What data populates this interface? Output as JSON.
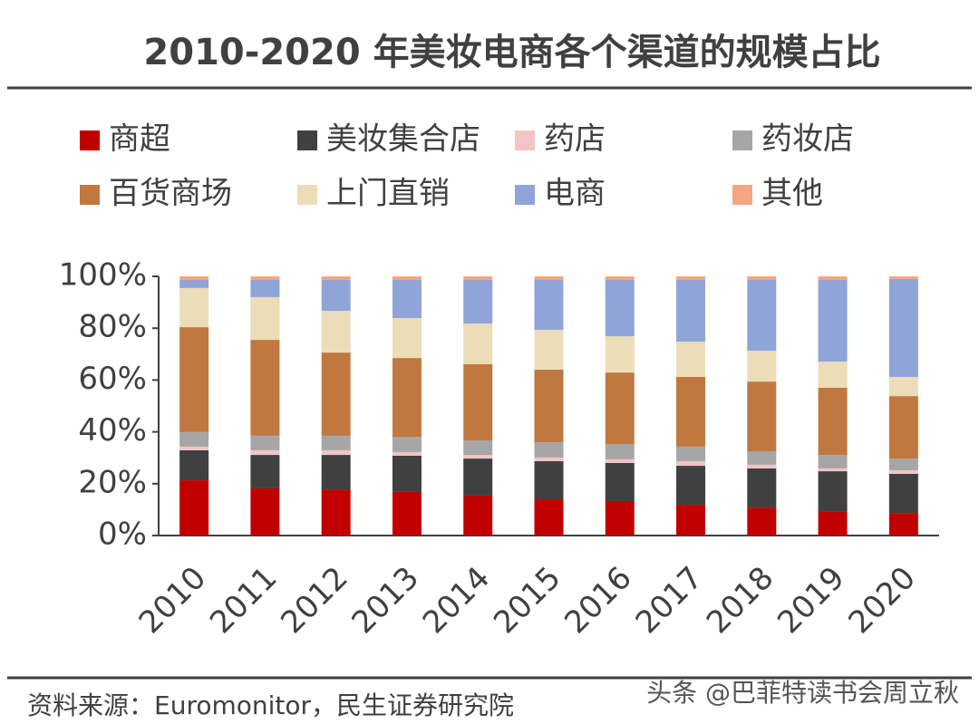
{
  "chart_data": {
    "type": "stacked_bar",
    "title": "2010-2020 年美妆电商各个渠道的规模占比",
    "categories": [
      "2010",
      "2011",
      "2012",
      "2013",
      "2014",
      "2015",
      "2016",
      "2017",
      "2018",
      "2019",
      "2020"
    ],
    "series": [
      {
        "name": "商超",
        "color": "#c00000",
        "values": [
          21.3,
          18.2,
          17.8,
          16.8,
          15.4,
          14.0,
          13.3,
          11.9,
          10.8,
          9.4,
          8.7
        ]
      },
      {
        "name": "美妆集合店",
        "color": "#404040",
        "values": [
          11.6,
          12.9,
          13.3,
          14.0,
          14.3,
          14.7,
          14.7,
          15.0,
          15.1,
          15.4,
          15.1
        ]
      },
      {
        "name": "药店",
        "color": "#f2c4c4",
        "values": [
          1.4,
          1.8,
          1.8,
          1.4,
          1.4,
          1.4,
          1.4,
          1.8,
          1.4,
          1.1,
          1.4
        ]
      },
      {
        "name": "药妆店",
        "color": "#a6a6a6",
        "values": [
          5.6,
          5.6,
          5.6,
          5.9,
          5.6,
          5.9,
          5.9,
          5.6,
          5.2,
          5.2,
          4.5
        ]
      },
      {
        "name": "百货商场",
        "color": "#c07840",
        "values": [
          40.5,
          37.0,
          32.1,
          30.4,
          29.4,
          28.0,
          27.6,
          26.9,
          26.9,
          25.9,
          24.1
        ]
      },
      {
        "name": "上门直销",
        "color": "#ecdcb8",
        "values": [
          15.1,
          16.5,
          16.1,
          15.4,
          15.7,
          15.4,
          14.0,
          13.6,
          11.9,
          10.1,
          7.4
        ]
      },
      {
        "name": "电商",
        "color": "#8fa4d8",
        "values": [
          3.1,
          6.6,
          11.9,
          14.7,
          16.8,
          19.2,
          21.7,
          23.8,
          27.3,
          31.5,
          37.8
        ]
      },
      {
        "name": "其他",
        "color": "#f4a582",
        "values": [
          1.4,
          1.4,
          1.4,
          1.4,
          1.4,
          1.4,
          1.4,
          1.4,
          1.4,
          1.4,
          1.0
        ]
      }
    ],
    "ylim": [
      0,
      100
    ],
    "yticks": [
      {
        "value": 0,
        "label": "0%"
      },
      {
        "value": 20,
        "label": "20%"
      },
      {
        "value": 40,
        "label": "40%"
      },
      {
        "value": 60,
        "label": "60%"
      },
      {
        "value": 80,
        "label": "80%"
      },
      {
        "value": 100,
        "label": "100%"
      }
    ],
    "source": "资料来源：Euromonitor，民生证券研究院",
    "watermark": "头条 @巴菲特读书会周立秋"
  }
}
